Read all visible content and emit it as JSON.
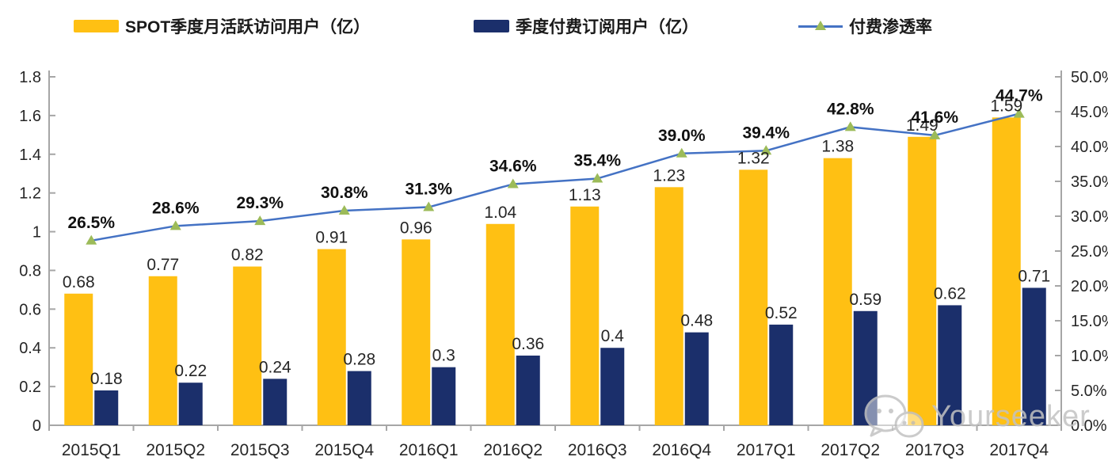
{
  "legend": {
    "mau_label": "SPOT季度月活跃访问用户（亿）",
    "subs_label": "季度付费订阅用户（亿）",
    "penetration_label": "付费渗透率"
  },
  "watermark": {
    "text": "Yourseeker"
  },
  "colors": {
    "mau_bar": "#FFC013",
    "subs_bar": "#1B2F6B",
    "line": "#4472C4",
    "marker": "#9CBB59",
    "axis": "#A6A6A6",
    "label": "#262626",
    "watermark": "#c2c2c2"
  },
  "chart_data": {
    "type": "bar",
    "subtype": "combo-bar-line-dual-axis",
    "categories": [
      "2015Q1",
      "2015Q2",
      "2015Q3",
      "2015Q4",
      "2016Q1",
      "2016Q2",
      "2016Q3",
      "2016Q4",
      "2017Q1",
      "2017Q2",
      "2017Q3",
      "2017Q4"
    ],
    "series": [
      {
        "name": "SPOT季度月活跃访问用户（亿）",
        "type": "bar",
        "axis": "left",
        "values": [
          0.68,
          0.77,
          0.82,
          0.91,
          0.96,
          1.04,
          1.13,
          1.23,
          1.32,
          1.38,
          1.49,
          1.59
        ],
        "labels": [
          "0.68",
          "0.77",
          "0.82",
          "0.91",
          "0.96",
          "1.04",
          "1.13",
          "1.23",
          "1.32",
          "1.38",
          "1.49",
          "1.59"
        ]
      },
      {
        "name": "季度付费订阅用户（亿）",
        "type": "bar",
        "axis": "left",
        "values": [
          0.18,
          0.22,
          0.24,
          0.28,
          0.3,
          0.36,
          0.4,
          0.48,
          0.52,
          0.59,
          0.62,
          0.71
        ],
        "labels": [
          "0.18",
          "0.22",
          "0.24",
          "0.28",
          "0.3",
          "0.36",
          "0.4",
          "0.48",
          "0.52",
          "0.59",
          "0.62",
          "0.71"
        ]
      },
      {
        "name": "付费渗透率",
        "type": "line",
        "axis": "right",
        "values": [
          26.5,
          28.6,
          29.3,
          30.8,
          31.3,
          34.6,
          35.4,
          39.0,
          39.4,
          42.8,
          41.6,
          44.7
        ],
        "labels": [
          "26.5%",
          "28.6%",
          "29.3%",
          "30.8%",
          "31.3%",
          "34.6%",
          "35.4%",
          "39.0%",
          "39.4%",
          "42.8%",
          "41.6%",
          "44.7%"
        ]
      }
    ],
    "left_axis": {
      "min": 0,
      "max": 1.8,
      "tick_labels": [
        "0",
        "0.2",
        "0.4",
        "0.6",
        "0.8",
        "1",
        "1.2",
        "1.4",
        "1.6",
        "1.8"
      ]
    },
    "right_axis": {
      "min": 0,
      "max": 50,
      "tick_labels": [
        "0.0%",
        "5.0%",
        "10.0%",
        "15.0%",
        "20.0%",
        "25.0%",
        "30.0%",
        "35.0%",
        "40.0%",
        "45.0%",
        "50.0%"
      ]
    },
    "grid": false,
    "legend_position": "top"
  }
}
